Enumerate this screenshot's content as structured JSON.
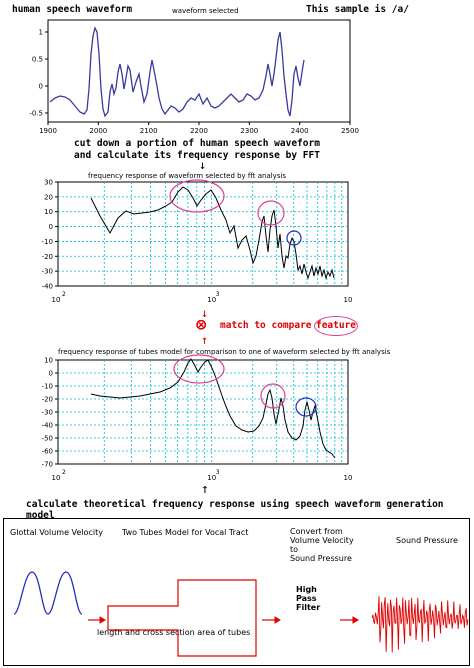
{
  "header": {
    "title": "human speech waveform",
    "selected_label": "waveform selected",
    "sample_note": "This sample is /a/"
  },
  "waveform_chart": {
    "y_ticks": [
      "1",
      "0.5",
      "0",
      "-0.5"
    ],
    "x_ticks": [
      "1900",
      "2000",
      "2100",
      "2200",
      "2300",
      "2400",
      "2500"
    ]
  },
  "caption_fft": {
    "line1": "cut down a portion of human speech waveform",
    "line2": "and  calculate its frequency response by FFT",
    "arrow": "↓"
  },
  "fft_chart": {
    "title": "frequency response of waveform selected by fft analysis",
    "y_ticks": [
      "30",
      "20",
      "10",
      "0",
      "-10",
      "-20",
      "-30",
      "-40"
    ],
    "x_ticks": [
      "2",
      "10",
      "3",
      "10"
    ]
  },
  "compare": {
    "arrow_down": "↓",
    "arrow_up": "↑",
    "symbol": "⊗",
    "text": "match to compare",
    "feature": "feature"
  },
  "tube_chart": {
    "title": "frequency response of tubes model for comparison to one of waveform selected by fft analysis",
    "y_ticks": [
      "10",
      "0",
      "-10",
      "-20",
      "-30",
      "-40",
      "-50",
      "-60",
      "-70"
    ],
    "x_ticks": [
      "2",
      "10",
      "3",
      "10"
    ]
  },
  "caption_theory": {
    "arrow": "↑",
    "text": "calculate theoretical frequency response using speech waveform generation model"
  },
  "model": {
    "glottal_label": "Glottal Volume Velocity",
    "tubes_label": "Two Tubes Model for Vocal Tract",
    "convert_label_1": "Convert from",
    "convert_label_2": "Volume Velocity",
    "convert_label_3": "to",
    "convert_label_4": "Sound Pressure",
    "sound_label": "Sound Pressure",
    "filter_1": "High",
    "filter_2": "Pass",
    "filter_3": "Filter",
    "tube_caption": "length and cross section area of tubes"
  },
  "colors": {
    "waveform": "#3a3aa0",
    "fft_line": "#000000",
    "grid": "#00bcd4",
    "highlight_pink": "#e0409a",
    "highlight_blue": "#2030c0",
    "accent_red": "#e00000"
  }
}
